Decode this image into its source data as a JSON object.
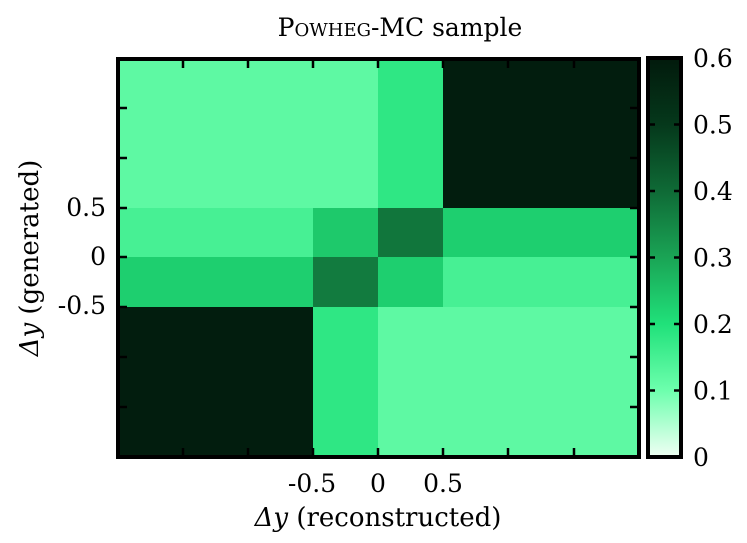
{
  "chart_data": {
    "type": "heatmap",
    "title": "Powheg-MC sample",
    "title_parts": {
      "small_caps": "Powheg",
      "rest": "-MC sample"
    },
    "xlabel": {
      "symbol": "Δy",
      "text": "(reconstructed)"
    },
    "ylabel": {
      "symbol": "Δy",
      "text": "(generated)"
    },
    "x_bin_edges": [
      -2,
      -0.5,
      0,
      0.5,
      2
    ],
    "y_bin_edges": [
      -2,
      -0.5,
      0,
      0.5,
      2
    ],
    "x_tick_labels": [
      "-0.5",
      "0",
      "0.5"
    ],
    "y_tick_labels": [
      "0.5",
      "0",
      "-0.5"
    ],
    "rows_generated_bins": [
      {
        "gen_bin": "[0.5, 2]",
        "values": [
          0.12,
          0.12,
          0.18,
          0.59
        ]
      },
      {
        "gen_bin": "[0, 0.5]",
        "values": [
          0.15,
          0.24,
          0.38,
          0.23
        ]
      },
      {
        "gen_bin": "[-0.5, 0]",
        "values": [
          0.23,
          0.37,
          0.23,
          0.15
        ]
      },
      {
        "gen_bin": "[-2, -0.5]",
        "values": [
          0.59,
          0.18,
          0.12,
          0.12
        ]
      }
    ],
    "colorbar": {
      "min": 0,
      "max": 0.6,
      "tick_labels": [
        "0",
        "0.1",
        "0.2",
        "0.3",
        "0.4",
        "0.5",
        "0.6"
      ]
    }
  }
}
